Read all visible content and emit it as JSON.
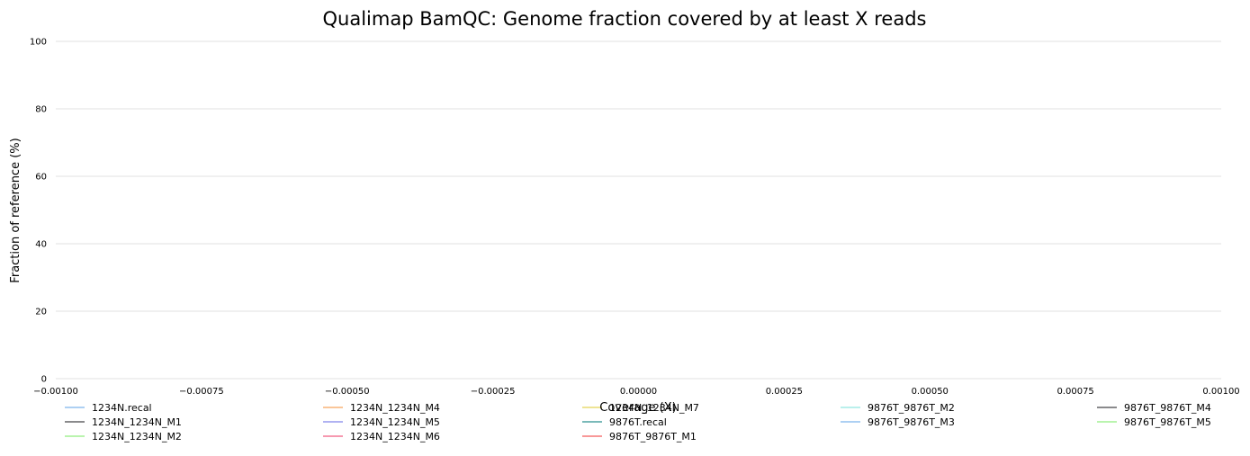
{
  "chart_data": {
    "type": "line",
    "title": "Qualimap BamQC: Genome fraction covered by at least X reads",
    "xlabel": "Coverage (X)",
    "ylabel": "Fraction of reference (%)",
    "xlim": [
      -0.001,
      0.001
    ],
    "ylim": [
      0,
      100
    ],
    "x_ticks": [
      "−0.00100",
      "−0.00075",
      "−0.00050",
      "−0.00025",
      "0.00000",
      "0.00025",
      "0.00050",
      "0.00075",
      "0.00100"
    ],
    "y_ticks": [
      "0",
      "20",
      "40",
      "60",
      "80",
      "100"
    ],
    "grid": "horizontal",
    "legend_position": "bottom",
    "series": [
      {
        "name": "1234N.recal",
        "color": "#7cb5ec",
        "values": []
      },
      {
        "name": "1234N_1234N_M1",
        "color": "#434348",
        "values": []
      },
      {
        "name": "1234N_1234N_M2",
        "color": "#90ed7d",
        "values": []
      },
      {
        "name": "1234N_1234N_M4",
        "color": "#f7a35c",
        "values": []
      },
      {
        "name": "1234N_1234N_M5",
        "color": "#8085e9",
        "values": []
      },
      {
        "name": "1234N_1234N_M6",
        "color": "#f15c80",
        "values": []
      },
      {
        "name": "1234N_1234N_M7",
        "color": "#e4d354",
        "values": []
      },
      {
        "name": "9876T.recal",
        "color": "#2b908f",
        "values": []
      },
      {
        "name": "9876T_9876T_M1",
        "color": "#f45b5b",
        "values": []
      },
      {
        "name": "9876T_9876T_M2",
        "color": "#91e8e1",
        "values": []
      },
      {
        "name": "9876T_9876T_M3",
        "color": "#7cb5ec",
        "values": []
      },
      {
        "name": "9876T_9876T_M4",
        "color": "#434348",
        "values": []
      },
      {
        "name": "9876T_9876T_M5",
        "color": "#90ed7d",
        "values": []
      }
    ]
  }
}
